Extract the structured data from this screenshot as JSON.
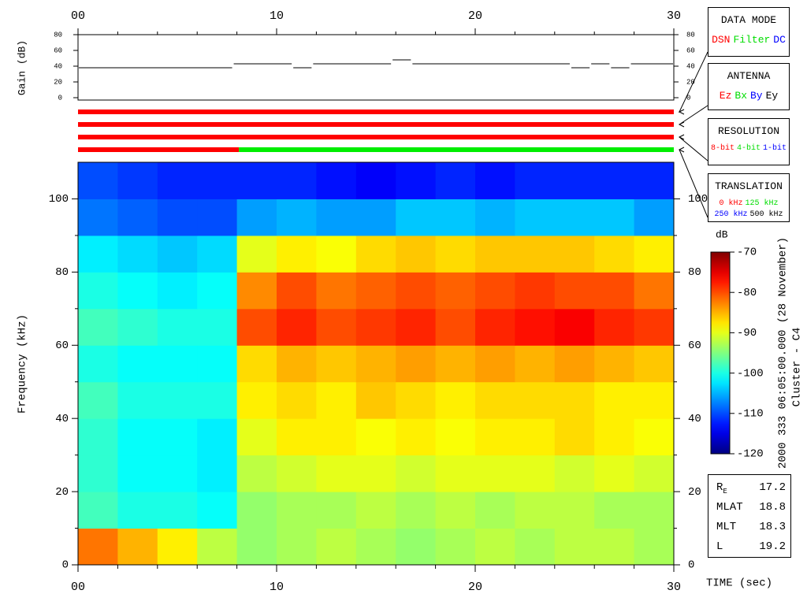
{
  "chart_data": {
    "type": "spectrogram",
    "xlabel": "TIME (sec)",
    "ylabel": "Frequency (kHz)",
    "xlim": [
      0,
      30
    ],
    "xticks": [
      {
        "value": 0,
        "label": "00"
      },
      10,
      20,
      30
    ],
    "xminorticks": [
      2,
      4,
      6,
      8,
      12,
      14,
      16,
      18,
      22,
      24,
      26,
      28
    ],
    "ylim": [
      0,
      110
    ],
    "yticks": [
      0,
      20,
      40,
      60,
      80,
      100
    ],
    "yminorticks": [
      10,
      30,
      50,
      70,
      90
    ],
    "xbins": [
      0,
      2,
      4,
      6,
      8,
      10,
      12,
      14,
      16,
      18,
      20,
      22,
      24,
      26,
      28,
      30
    ],
    "ybins": [
      0,
      10,
      20,
      30,
      40,
      50,
      60,
      70,
      80,
      90,
      100,
      110
    ],
    "z": [
      [
        -82,
        -85,
        -88,
        -92,
        -94,
        -93,
        -92,
        -93,
        -94,
        -93,
        -92,
        -93,
        -92,
        -92,
        -93
      ],
      [
        -98,
        -100,
        -100,
        -101,
        -94,
        -93,
        -93,
        -92,
        -93,
        -92,
        -93,
        -92,
        -92,
        -93,
        -93
      ],
      [
        -99,
        -101,
        -101,
        -102,
        -92,
        -91,
        -90,
        -90,
        -91,
        -90,
        -90,
        -90,
        -91,
        -90,
        -91
      ],
      [
        -99,
        -101,
        -101,
        -102,
        -90,
        -88,
        -88,
        -89,
        -88,
        -89,
        -88,
        -88,
        -87,
        -88,
        -89
      ],
      [
        -98,
        -100,
        -100,
        -100,
        -88,
        -87,
        -88,
        -86,
        -87,
        -88,
        -87,
        -87,
        -87,
        -88,
        -88
      ],
      [
        -100,
        -101,
        -101,
        -101,
        -87,
        -85,
        -86,
        -85,
        -84,
        -85,
        -84,
        -85,
        -84,
        -85,
        -86
      ],
      [
        -98,
        -99,
        -100,
        -100,
        -80,
        -78,
        -80,
        -79,
        -78,
        -80,
        -78,
        -77,
        -76,
        -78,
        -79
      ],
      [
        -100,
        -101,
        -102,
        -101,
        -83,
        -80,
        -82,
        -81,
        -80,
        -81,
        -80,
        -79,
        -80,
        -80,
        -82
      ],
      [
        -102,
        -103,
        -104,
        -103,
        -90,
        -88,
        -89,
        -87,
        -86,
        -87,
        -86,
        -86,
        -86,
        -87,
        -88
      ],
      [
        -108,
        -109,
        -110,
        -110,
        -106,
        -105,
        -106,
        -106,
        -104,
        -104,
        -105,
        -104,
        -104,
        -104,
        -106
      ],
      [
        -110,
        -111,
        -112,
        -112,
        -112,
        -112,
        -113,
        -114,
        -113,
        -112,
        -113,
        -112,
        -112,
        -112,
        -112
      ]
    ],
    "colormap": "jet",
    "colorbar": {
      "label": "dB",
      "lim": [
        -120,
        -70
      ],
      "ticks": [
        -70,
        -80,
        -90,
        -100,
        -110,
        -120
      ]
    },
    "gain": {
      "ylabel": "Gain (dB)",
      "ylim": [
        0,
        80
      ],
      "yticks": [
        0,
        20,
        40,
        60,
        80
      ],
      "x": [
        0,
        7.8,
        10.8,
        11.8,
        15.8,
        16.8,
        24.8,
        25.8,
        26.8,
        27.8
      ],
      "values": [
        38,
        43,
        38,
        43,
        48,
        43,
        38,
        43,
        38,
        43
      ],
      "color": "#000000"
    },
    "mode_bars": [
      {
        "title": "DATA MODE",
        "options": [
          {
            "name": "DSN",
            "color": "#ff0000"
          },
          {
            "name": "Filter",
            "color": "#00dd00"
          },
          {
            "name": "DC",
            "color": "#0000ff"
          }
        ],
        "segments": [
          {
            "start": 0,
            "end": 30,
            "color": "#ff0000"
          }
        ]
      },
      {
        "title": "ANTENNA",
        "options": [
          {
            "name": "Ez",
            "color": "#ff0000"
          },
          {
            "name": "Bx",
            "color": "#00dd00"
          },
          {
            "name": "By",
            "color": "#0000ff"
          },
          {
            "name": "Ey",
            "color": "#000000"
          }
        ],
        "segments": [
          {
            "start": 0,
            "end": 30,
            "color": "#ff0000"
          }
        ]
      },
      {
        "title": "RESOLUTION",
        "options": [
          {
            "name": "8-bit",
            "color": "#ff0000"
          },
          {
            "name": "4-bit",
            "color": "#00dd00"
          },
          {
            "name": "1-bit",
            "color": "#0000ff"
          }
        ],
        "segments": [
          {
            "start": 0,
            "end": 30,
            "color": "#ff0000"
          }
        ]
      },
      {
        "title": "TRANSLATION",
        "options": [
          {
            "name": "0 kHz",
            "color": "#ff0000"
          },
          {
            "name": "125 kHz",
            "color": "#00dd00"
          },
          {
            "name": "250 kHz",
            "color": "#0000ff"
          },
          {
            "name": "500 kHz",
            "color": "#000000"
          }
        ],
        "segments": [
          {
            "start": 0,
            "end": 8.1,
            "color": "#ff0000"
          },
          {
            "start": 8.1,
            "end": 30,
            "color": "#00ee00"
          }
        ]
      }
    ],
    "header": "2000 333 06:05:00.000 (28 November)",
    "spacecraft": "Cluster - C4",
    "orbit": [
      {
        "label": "R",
        "sub": "E",
        "value": 17.2
      },
      {
        "label": "MLAT",
        "value": 18.8
      },
      {
        "label": "MLT",
        "value": 18.3
      },
      {
        "label": "L",
        "value": 19.2
      }
    ]
  }
}
